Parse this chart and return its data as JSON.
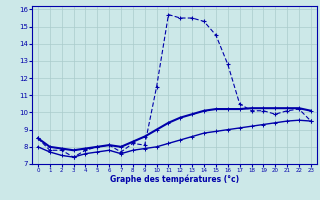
{
  "xlabel": "Graphe des températures (°c)",
  "bg_color": "#cce8e8",
  "line_color": "#0000aa",
  "grid_color": "#aacccc",
  "x": [
    0,
    1,
    2,
    3,
    4,
    5,
    6,
    7,
    8,
    9,
    10,
    11,
    12,
    13,
    14,
    15,
    16,
    17,
    18,
    19,
    20,
    21,
    22,
    23
  ],
  "temp_curve": [
    8.5,
    7.8,
    7.8,
    7.4,
    7.8,
    8.0,
    8.1,
    7.7,
    8.2,
    8.1,
    11.5,
    15.7,
    15.5,
    15.5,
    15.3,
    14.5,
    12.8,
    10.5,
    10.1,
    10.1,
    9.9,
    10.1,
    10.2,
    9.5
  ],
  "temp_mid": [
    8.5,
    8.0,
    7.9,
    7.8,
    7.9,
    8.0,
    8.1,
    8.0,
    8.3,
    8.6,
    9.0,
    9.4,
    9.7,
    9.9,
    10.1,
    10.2,
    10.2,
    10.2,
    10.25,
    10.25,
    10.25,
    10.25,
    10.25,
    10.1
  ],
  "temp_low": [
    8.0,
    7.7,
    7.5,
    7.4,
    7.6,
    7.7,
    7.8,
    7.6,
    7.8,
    7.9,
    8.0,
    8.2,
    8.4,
    8.6,
    8.8,
    8.9,
    9.0,
    9.1,
    9.2,
    9.3,
    9.4,
    9.5,
    9.55,
    9.5
  ],
  "xlim": [
    -0.5,
    23.5
  ],
  "ylim": [
    7,
    16.2
  ],
  "yticks": [
    7,
    8,
    9,
    10,
    11,
    12,
    13,
    14,
    15,
    16
  ],
  "xticks": [
    0,
    1,
    2,
    3,
    4,
    5,
    6,
    7,
    8,
    9,
    10,
    11,
    12,
    13,
    14,
    15,
    16,
    17,
    18,
    19,
    20,
    21,
    22,
    23
  ]
}
